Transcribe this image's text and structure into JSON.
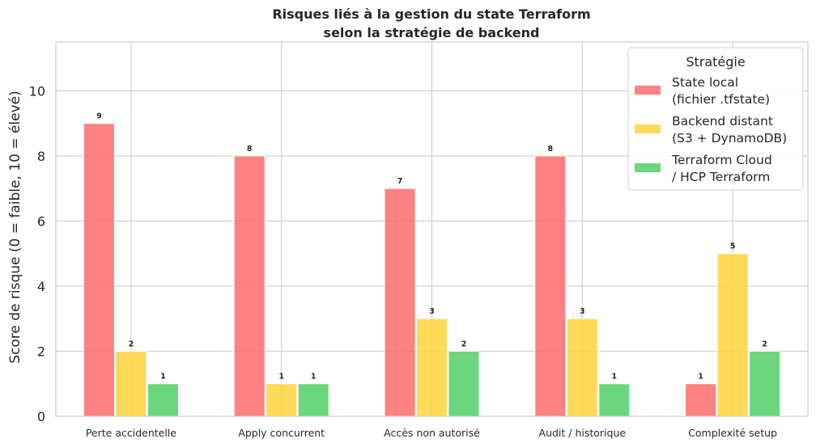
{
  "chart_data": {
    "type": "bar",
    "title": [
      "Risques liés à la gestion du state Terraform",
      "selon la stratégie de backend"
    ],
    "xlabel": "",
    "ylabel": "Score de risque (0 = faible, 10 = élevé)",
    "ylim": [
      0,
      11.5
    ],
    "yticks": [
      0,
      2,
      4,
      6,
      8,
      10
    ],
    "grid": true,
    "categories": [
      "Perte accidentelle",
      "Apply concurrent",
      "Accès non autorisé",
      "Audit / historique",
      "Complexité setup"
    ],
    "series": [
      {
        "name": [
          "State local",
          "(fichier .tfstate)"
        ],
        "color": "#ff6b6b",
        "values": [
          9,
          8,
          7,
          8,
          1
        ]
      },
      {
        "name": [
          "Backend distant",
          "(S3 + DynamoDB)"
        ],
        "color": "#ffd43b",
        "values": [
          2,
          1,
          3,
          3,
          5
        ]
      },
      {
        "name": [
          "Terraform Cloud",
          "/ HCP Terraform"
        ],
        "color": "#51cf66",
        "values": [
          1,
          1,
          2,
          1,
          2
        ]
      }
    ],
    "legend": {
      "title": "Stratégie",
      "position": "top-right"
    }
  }
}
